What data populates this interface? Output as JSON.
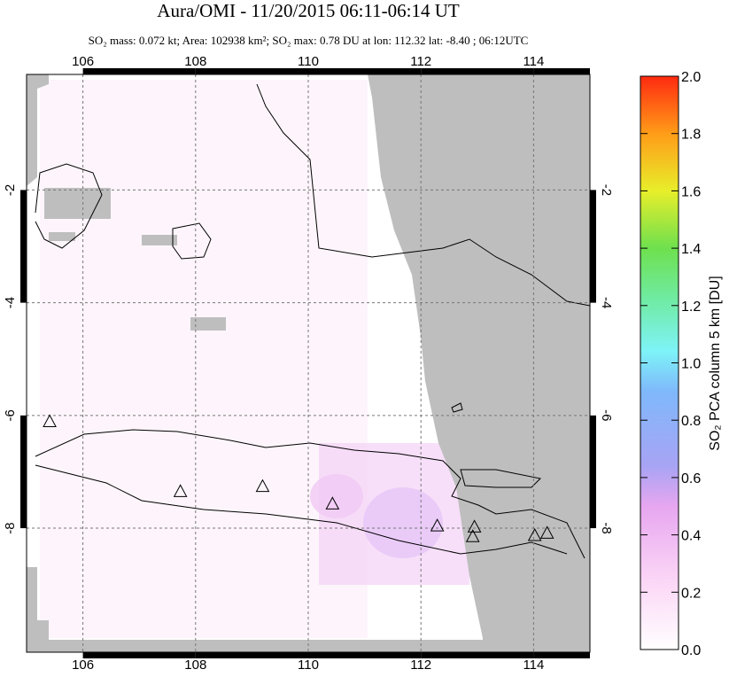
{
  "chart_data": {
    "type": "map",
    "title": "Aura/OMI - 11/20/2015 06:11-06:14 UT",
    "subtitle": "SO₂ mass: 0.072 kt; Area: 102938 km²; SO₂ max: 0.78 DU at lon: 112.32 lat: -8.40 ; 06:12UTC",
    "xlim": [
      105,
      115
    ],
    "ylim": [
      -10.2,
      0.05
    ],
    "xticks": [
      106,
      108,
      110,
      112,
      114
    ],
    "yticks": [
      -2,
      -4,
      -6,
      -8
    ],
    "grid": true,
    "volcanoes": {
      "x": [
        105.41,
        107.73,
        109.19,
        110.43,
        112.29,
        112.95,
        112.92,
        114.02,
        114.24
      ],
      "y": [
        -6.12,
        -7.36,
        -7.27,
        -7.58,
        -7.97,
        -7.99,
        -8.16,
        -8.14,
        -8.1
      ]
    },
    "colorbar": {
      "label": "SO₂ PCA column 5 km [DU]",
      "lim": [
        0,
        2
      ],
      "ticks": [
        {
          "value": 0,
          "label": "0.0"
        },
        0.2,
        0.4,
        0.6,
        0.8,
        {
          "value": 1,
          "label": "1.0"
        },
        1.2,
        1.4,
        1.6,
        1.8,
        {
          "value": 2,
          "label": "2.0"
        }
      ]
    }
  }
}
